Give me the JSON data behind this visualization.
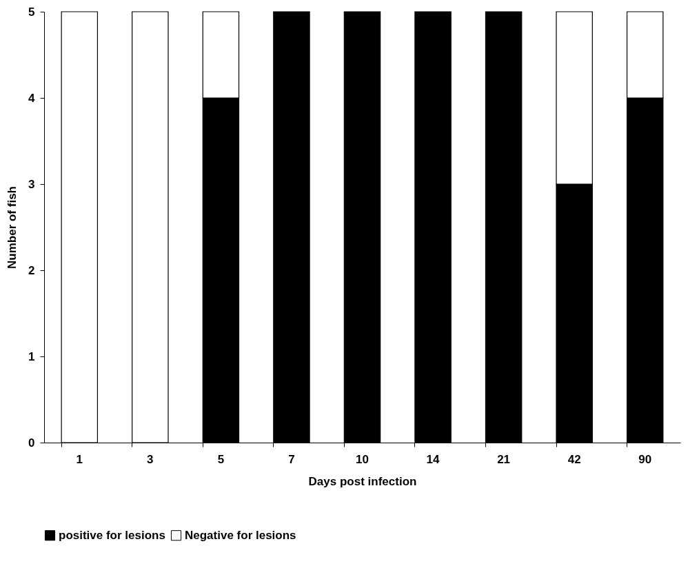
{
  "chart_data": {
    "type": "bar",
    "xlabel": "Days post infection",
    "ylabel": "Number of fish",
    "categories": [
      "1",
      "3",
      "5",
      "7",
      "10",
      "14",
      "21",
      "42",
      "90"
    ],
    "series": [
      {
        "name": "positive for lesions",
        "color": "#000000",
        "values": [
          0,
          0,
          4,
          5,
          5,
          5,
          5,
          3,
          4
        ]
      },
      {
        "name": "Negative for lesions",
        "color": "#ffffff",
        "values": [
          5,
          5,
          1,
          0,
          0,
          0,
          0,
          2,
          1
        ]
      }
    ],
    "stacked": true,
    "ylim": [
      0,
      5
    ],
    "yticks": [
      0,
      1,
      2,
      3,
      4,
      5
    ],
    "grid": false,
    "legend": "bottom"
  }
}
